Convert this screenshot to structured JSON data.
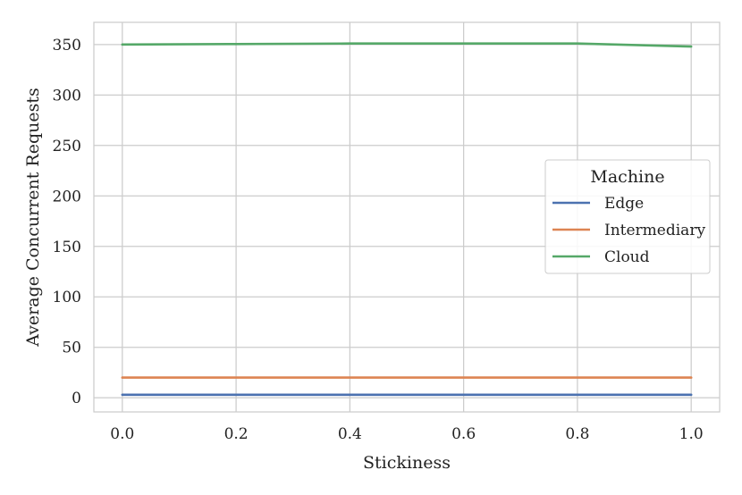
{
  "chart_data": {
    "type": "line",
    "xlabel": "Stickiness",
    "ylabel": "Average Concurrent Requests",
    "xlim": [
      -0.05,
      1.05
    ],
    "ylim": [
      -14,
      372
    ],
    "xticks": [
      0.0,
      0.2,
      0.4,
      0.6,
      0.8,
      1.0
    ],
    "xtick_labels": [
      "0.0",
      "0.2",
      "0.4",
      "0.6",
      "0.8",
      "1.0"
    ],
    "yticks": [
      0,
      50,
      100,
      150,
      200,
      250,
      300,
      350
    ],
    "ytick_labels": [
      "0",
      "50",
      "100",
      "150",
      "200",
      "250",
      "300",
      "350"
    ],
    "grid": true,
    "legend": {
      "title": "Machine",
      "placement": "center-right"
    },
    "x": [
      0.0,
      0.2,
      0.4,
      0.6,
      0.8,
      1.0
    ],
    "series": [
      {
        "name": "Edge",
        "color": "#4c72b0",
        "values": [
          3,
          3,
          3,
          3,
          3,
          3
        ]
      },
      {
        "name": "Intermediary",
        "color": "#dd8452",
        "values": [
          20,
          20,
          20,
          20,
          20,
          20
        ]
      },
      {
        "name": "Cloud",
        "color": "#55a868",
        "values": [
          350,
          350.5,
          351,
          351,
          351,
          348
        ]
      }
    ]
  }
}
